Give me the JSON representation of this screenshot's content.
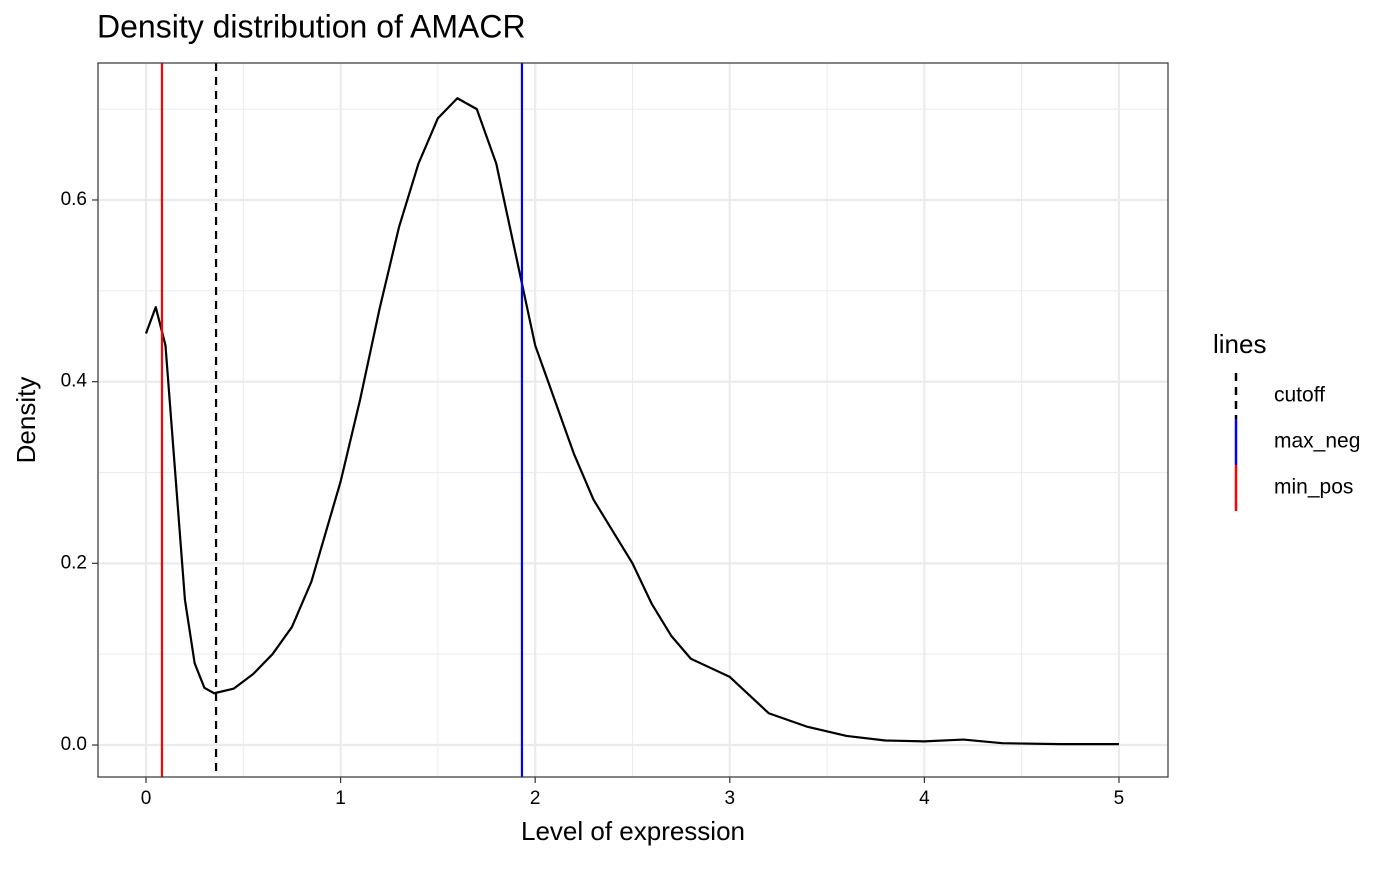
{
  "chart_data": {
    "type": "line",
    "title": "Density distribution of AMACR",
    "x_label": "Level of expression",
    "y_label": "Density",
    "x": [
      0,
      0.05,
      0.1,
      0.15,
      0.2,
      0.25,
      0.3,
      0.35,
      0.45,
      0.55,
      0.65,
      0.75,
      0.85,
      1.0,
      1.1,
      1.2,
      1.3,
      1.4,
      1.5,
      1.6,
      1.7,
      1.8,
      1.9,
      2.0,
      2.1,
      2.2,
      2.3,
      2.4,
      2.5,
      2.6,
      2.7,
      2.8,
      2.9,
      3.0,
      3.1,
      3.2,
      3.4,
      3.6,
      3.8,
      4.0,
      4.2,
      4.4,
      4.7,
      5.0
    ],
    "series": [
      {
        "color": "#000000",
        "values": [
          0.453,
          0.482,
          0.44,
          0.3,
          0.16,
          0.09,
          0.063,
          0.057,
          0.062,
          0.078,
          0.1,
          0.13,
          0.18,
          0.29,
          0.38,
          0.48,
          0.57,
          0.64,
          0.69,
          0.712,
          0.7,
          0.64,
          0.54,
          0.44,
          0.38,
          0.32,
          0.27,
          0.235,
          0.2,
          0.155,
          0.12,
          0.095,
          0.085,
          0.075,
          0.055,
          0.035,
          0.02,
          0.01,
          0.005,
          0.004,
          0.006,
          0.002,
          0.001,
          0.001
        ]
      }
    ],
    "vlines": [
      {
        "name": "cutoff",
        "value": 0.36,
        "color": "#000000",
        "dashed": true
      },
      {
        "name": "max_neg",
        "value": 1.932,
        "color": "#0000ff",
        "dashed": false
      },
      {
        "name": "min_pos",
        "value": 0.082,
        "color": "#ff0000",
        "dashed": false
      }
    ],
    "legend_title": "lines",
    "legend_position": "right",
    "xlim": [
      -0.2467,
      5.252
    ],
    "ylim": [
      -0.0352,
      0.7508
    ],
    "xticks": [
      0,
      1,
      2,
      3,
      4,
      5
    ],
    "yticks": [
      {
        "value": 0,
        "label": "0.0"
      },
      {
        "value": 0.2,
        "label": "0.2"
      },
      {
        "value": 0.4,
        "label": "0.4"
      },
      {
        "value": 0.6,
        "label": "0.6"
      }
    ],
    "x_minor_grid": [
      0.5,
      1.5,
      2.5,
      3.5,
      4.5
    ],
    "y_minor_grid": [
      0.1,
      0.3,
      0.5,
      0.7
    ],
    "grid": true
  }
}
